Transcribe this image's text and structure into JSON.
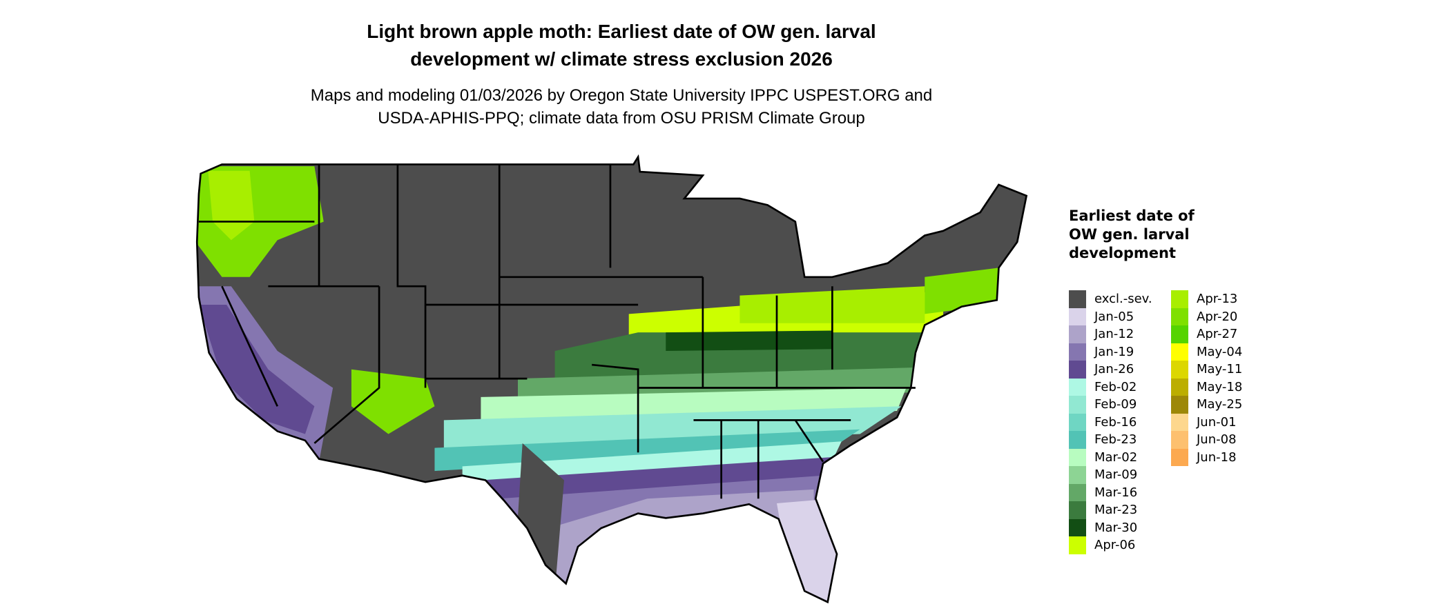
{
  "title": {
    "line1": "Light brown apple moth: Earliest date of OW gen. larval",
    "line2": "development w/ climate stress exclusion 2026"
  },
  "subtitle": {
    "line1": "Maps and modeling 01/03/2026 by Oregon State University IPPC USPEST.ORG and",
    "line2": "USDA-APHIS-PPQ; climate data from OSU PRISM Climate Group"
  },
  "legend": {
    "title": "Earliest date of OW gen. larval development",
    "items": [
      {
        "label": "excl.-sev.",
        "color": "#4d4d4d"
      },
      {
        "label": "Jan-05",
        "color": "#dad3ea"
      },
      {
        "label": "Jan-12",
        "color": "#ada3c9"
      },
      {
        "label": "Jan-19",
        "color": "#8576b0"
      },
      {
        "label": "Jan-26",
        "color": "#604a91"
      },
      {
        "label": "Feb-02",
        "color": "#aef8e4"
      },
      {
        "label": "Feb-09",
        "color": "#91e8d2"
      },
      {
        "label": "Feb-16",
        "color": "#6fd6c3"
      },
      {
        "label": "Feb-23",
        "color": "#52c3b5"
      },
      {
        "label": "Mar-02",
        "color": "#b8fcc0"
      },
      {
        "label": "Mar-09",
        "color": "#8dd494"
      },
      {
        "label": "Mar-16",
        "color": "#63a867"
      },
      {
        "label": "Mar-23",
        "color": "#3b7b3e"
      },
      {
        "label": "Mar-30",
        "color": "#124e14"
      },
      {
        "label": "Apr-06",
        "color": "#ccff00"
      },
      {
        "label": "Apr-13",
        "color": "#a8ee00"
      },
      {
        "label": "Apr-20",
        "color": "#7fe000"
      },
      {
        "label": "Apr-27",
        "color": "#55d400"
      },
      {
        "label": "May-04",
        "color": "#ffff00"
      },
      {
        "label": "May-11",
        "color": "#dcd700"
      },
      {
        "label": "May-18",
        "color": "#bcae00"
      },
      {
        "label": "May-25",
        "color": "#9d8808"
      },
      {
        "label": "Jun-01",
        "color": "#fdd78d"
      },
      {
        "label": "Jun-08",
        "color": "#fdc06f"
      },
      {
        "label": "Jun-18",
        "color": "#fca950"
      }
    ]
  }
}
